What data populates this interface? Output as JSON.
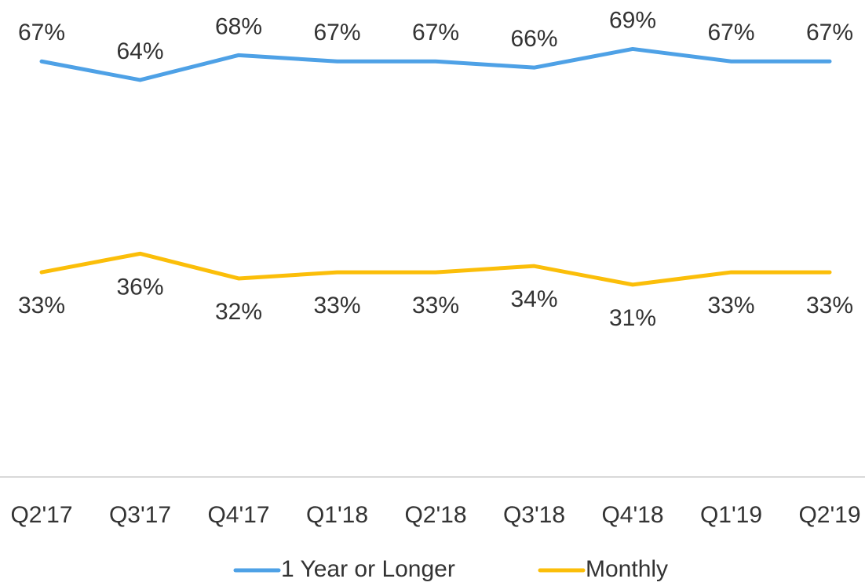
{
  "chart_data": {
    "type": "line",
    "categories": [
      "Q2'17",
      "Q3'17",
      "Q4'17",
      "Q1'18",
      "Q2'18",
      "Q3'18",
      "Q4'18",
      "Q1'19",
      "Q2'19"
    ],
    "series": [
      {
        "name": "1 Year or Longer",
        "color": "#4ea1e6",
        "values": [
          67,
          64,
          68,
          67,
          67,
          66,
          69,
          67,
          67
        ],
        "value_labels": [
          "67%",
          "64%",
          "68%",
          "67%",
          "67%",
          "66%",
          "69%",
          "67%",
          "67%"
        ]
      },
      {
        "name": "Monthly",
        "color": "#fbbe09",
        "values": [
          33,
          36,
          32,
          33,
          33,
          34,
          31,
          33,
          33
        ],
        "value_labels": [
          "33%",
          "36%",
          "32%",
          "33%",
          "33%",
          "34%",
          "31%",
          "33%",
          "33%"
        ]
      }
    ],
    "ylim": [
      0,
      75
    ],
    "grid": false,
    "legend": "bottom"
  }
}
